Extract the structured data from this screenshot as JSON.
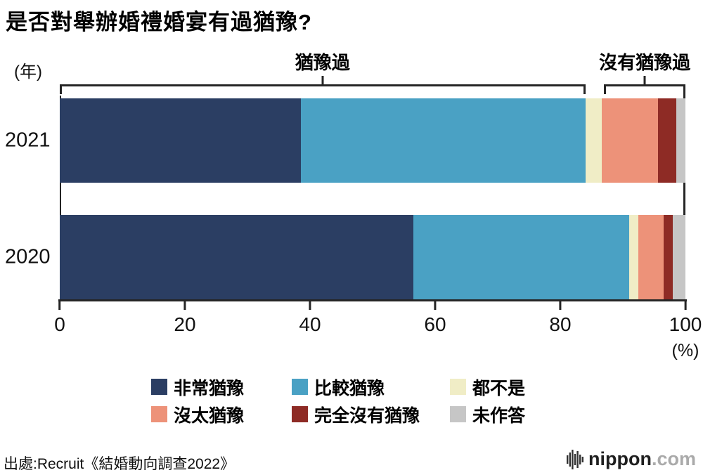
{
  "title": "是否對舉辦婚禮婚宴有過猶豫?",
  "unit_label": "(年)",
  "percent_label": "(%)",
  "source": "出處:Recruit《結婚動向調查2022》",
  "logo": {
    "icon": "soundbars-icon",
    "brand": "nippon",
    "tld": ".com"
  },
  "chart_data": {
    "type": "bar",
    "orientation": "horizontal",
    "stacked": true,
    "title": "是否對舉辦婚禮婚宴有過猶豫?",
    "categories": [
      "2021",
      "2020"
    ],
    "series": [
      {
        "name": "非常猶豫",
        "color": "#2b3e63",
        "values": [
          38.5,
          56.5
        ]
      },
      {
        "name": "比較猶豫",
        "color": "#4aa1c4",
        "values": [
          45.5,
          34.5
        ]
      },
      {
        "name": "都不是",
        "color": "#f0edc6",
        "values": [
          2.6,
          1.5
        ]
      },
      {
        "name": "沒太猶豫",
        "color": "#ed9279",
        "values": [
          9.0,
          4.0
        ]
      },
      {
        "name": "完全沒有猶豫",
        "color": "#8e2b25",
        "values": [
          3.0,
          1.5
        ]
      },
      {
        "name": "未作答",
        "color": "#c6c6c6",
        "values": [
          1.4,
          2.0
        ]
      }
    ],
    "xlim": [
      0,
      100
    ],
    "xticks": [
      0,
      20,
      40,
      60,
      80,
      100
    ],
    "grid": false,
    "legend_position": "bottom",
    "annotations": [
      {
        "label": "猶豫過",
        "from": 0,
        "to": 84
      },
      {
        "label": "沒有猶豫過",
        "from": 87,
        "to": 100
      }
    ],
    "legend_rows": [
      [
        "非常猶豫",
        "比較猶豫",
        "都不是"
      ],
      [
        "沒太猶豫",
        "完全沒有猶豫",
        "未作答"
      ]
    ]
  }
}
